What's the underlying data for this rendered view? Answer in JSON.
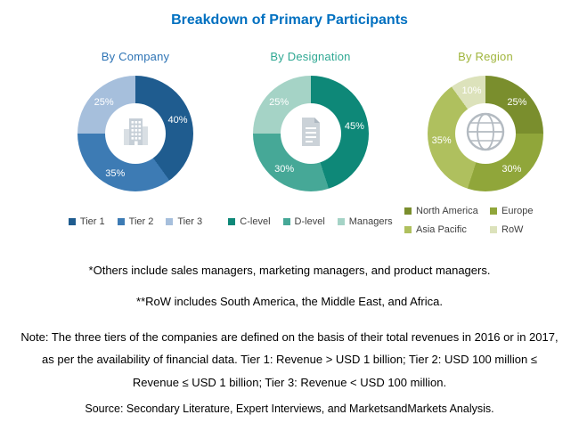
{
  "page": {
    "title": "Breakdown of Primary Participants",
    "title_color": "#0070C0"
  },
  "notes": {
    "others": "*Others include sales managers, marketing managers, and product managers.",
    "row": "**RoW includes South America, the Middle East, and Africa.",
    "tiers": "Note: The three tiers of the companies are defined on the basis of their total revenues in 2016 or in 2017, as per the availability of financial data. Tier 1: Revenue > USD 1 billion; Tier 2: USD 100 million ≤ Revenue ≤ USD 1 billion; Tier 3: Revenue < USD 100 million.",
    "source": "Source: Secondary Literature, Expert Interviews, and MarketsandMarkets Analysis."
  },
  "chart_data": [
    {
      "type": "pie",
      "title": "By Company",
      "title_color": "#2E74B5",
      "icon": "building-icon",
      "legend_position": "bottom",
      "start_angle": 0,
      "direction": "clockwise",
      "segments": [
        {
          "label": "Tier 1",
          "value": 40,
          "color": "#1F5C8F"
        },
        {
          "label": "Tier 2",
          "value": 35,
          "color": "#3D7BB4"
        },
        {
          "label": "Tier 3",
          "value": 25,
          "color": "#A6BFDC"
        }
      ]
    },
    {
      "type": "pie",
      "title": "By Designation",
      "title_color": "#2FA893",
      "icon": "document-icon",
      "legend_position": "bottom",
      "start_angle": 0,
      "direction": "clockwise",
      "segments": [
        {
          "label": "C-level",
          "value": 45,
          "color": "#0E8878"
        },
        {
          "label": "D-level",
          "value": 30,
          "color": "#46A897"
        },
        {
          "label": "Managers",
          "value": 25,
          "color": "#A5D3C6"
        }
      ]
    },
    {
      "type": "pie",
      "title": "By Region",
      "title_color": "#A0B53C",
      "icon": "globe-icon",
      "legend_position": "bottom",
      "legend_columns": 2,
      "start_angle": 0,
      "direction": "clockwise",
      "segments": [
        {
          "label": "North America",
          "value": 25,
          "color": "#7A8E2D"
        },
        {
          "label": "Europe",
          "value": 30,
          "color": "#90A63A"
        },
        {
          "label": "Asia Pacific",
          "value": 35,
          "color": "#AFC05E"
        },
        {
          "label": "RoW",
          "value": 10,
          "color": "#DCE2BB"
        }
      ]
    }
  ]
}
